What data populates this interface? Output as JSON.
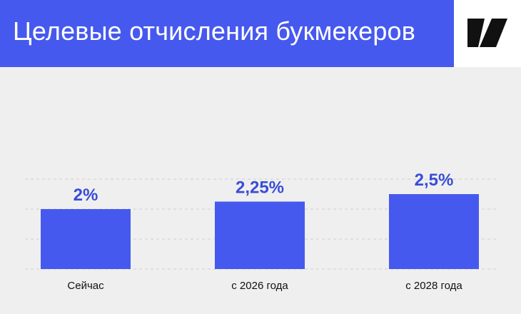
{
  "header": {
    "title": "Целевые отчисления букмекеров"
  },
  "colors": {
    "brand": "#4659ee",
    "bar": "#4659ee",
    "value_label": "#3a4cd8",
    "background": "#efefef",
    "grid": "#cfcfcf"
  },
  "logo": {
    "icon": "slash-logo-icon"
  },
  "chart_data": {
    "type": "bar",
    "title": "Целевые отчисления букмекеров",
    "categories": [
      "Сейчас",
      "с 2026 года",
      "с 2028 года"
    ],
    "values": [
      2,
      2.25,
      2.5
    ],
    "value_labels": [
      "2%",
      "2,25%",
      "2,5%"
    ],
    "ylim": [
      0,
      3
    ],
    "grid": true,
    "xlabel": "",
    "ylabel": ""
  }
}
